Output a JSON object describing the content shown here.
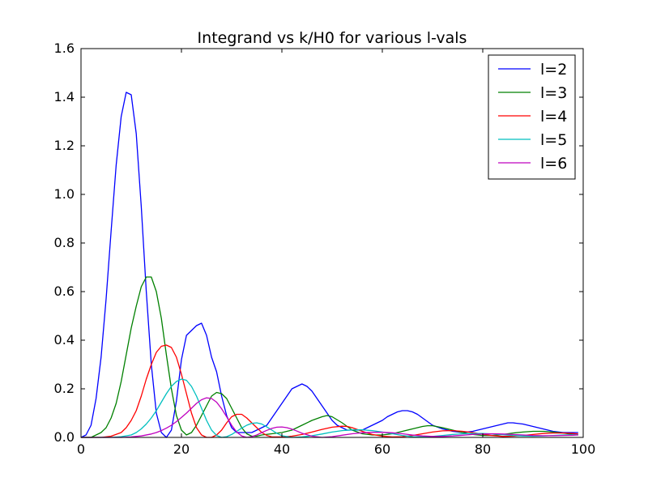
{
  "chart_data": {
    "type": "line",
    "title": "Integrand vs k/H0 for various l-vals",
    "xlabel": "",
    "ylabel": "",
    "xlim": [
      0,
      100
    ],
    "ylim": [
      0,
      1.6
    ],
    "xticks": [
      0,
      20,
      40,
      60,
      80,
      100
    ],
    "xtick_labels": [
      "0",
      "20",
      "40",
      "60",
      "80",
      "100"
    ],
    "yticks": [
      0,
      0.2,
      0.4,
      0.6,
      0.8,
      1.0,
      1.2,
      1.4,
      1.6
    ],
    "ytick_labels": [
      "0.0",
      "0.2",
      "0.4",
      "0.6",
      "0.8",
      "1.0",
      "1.2",
      "1.4",
      "1.6"
    ],
    "grid": false,
    "legend_position": "top-right",
    "series": [
      {
        "name": "l=2",
        "color": "#0000ff",
        "x": [
          0,
          1,
          2,
          3,
          4,
          5,
          6,
          7,
          8,
          9,
          10,
          11,
          12,
          13,
          14,
          15,
          16,
          17,
          18,
          19,
          20,
          21,
          22,
          23,
          24,
          25,
          26,
          27,
          28,
          29,
          30,
          31,
          32,
          33,
          34,
          35,
          36,
          37,
          38,
          39,
          40,
          41,
          42,
          43,
          44,
          45,
          46,
          47,
          48,
          49,
          50,
          51,
          52,
          53,
          54,
          55,
          56,
          57,
          58,
          59,
          60,
          61,
          62,
          63,
          64,
          65,
          66,
          67,
          68,
          69,
          70,
          72,
          74,
          76,
          78,
          80,
          82,
          84,
          85,
          86,
          88,
          90,
          92,
          94,
          96,
          98,
          99
        ],
        "y": [
          0.0,
          0.01,
          0.05,
          0.16,
          0.33,
          0.57,
          0.85,
          1.12,
          1.32,
          1.42,
          1.41,
          1.25,
          0.95,
          0.6,
          0.3,
          0.1,
          0.02,
          0.0,
          0.03,
          0.15,
          0.32,
          0.42,
          0.44,
          0.46,
          0.47,
          0.42,
          0.33,
          0.27,
          0.17,
          0.09,
          0.04,
          0.02,
          0.02,
          0.02,
          0.02,
          0.03,
          0.04,
          0.05,
          0.08,
          0.11,
          0.14,
          0.17,
          0.2,
          0.21,
          0.22,
          0.21,
          0.19,
          0.16,
          0.13,
          0.1,
          0.07,
          0.05,
          0.04,
          0.03,
          0.03,
          0.03,
          0.03,
          0.04,
          0.05,
          0.06,
          0.07,
          0.085,
          0.095,
          0.105,
          0.11,
          0.11,
          0.105,
          0.095,
          0.08,
          0.065,
          0.05,
          0.035,
          0.025,
          0.02,
          0.025,
          0.035,
          0.045,
          0.055,
          0.06,
          0.06,
          0.055,
          0.045,
          0.035,
          0.025,
          0.02,
          0.02,
          0.02
        ]
      },
      {
        "name": "l=3",
        "color": "#008000",
        "x": [
          0,
          2,
          3,
          4,
          5,
          6,
          7,
          8,
          9,
          10,
          11,
          12,
          13,
          14,
          15,
          16,
          17,
          18,
          19,
          20,
          21,
          22,
          23,
          24,
          25,
          26,
          27,
          28,
          29,
          30,
          31,
          32,
          33,
          34,
          35,
          36,
          38,
          40,
          42,
          44,
          46,
          48,
          49,
          50,
          52,
          54,
          56,
          58,
          60,
          62,
          64,
          66,
          68,
          69,
          70,
          72,
          74,
          76,
          78,
          80,
          82,
          84,
          86,
          88,
          90,
          92,
          94,
          96,
          98,
          99
        ],
        "y": [
          0.0,
          0.0,
          0.01,
          0.02,
          0.04,
          0.08,
          0.14,
          0.23,
          0.34,
          0.45,
          0.54,
          0.62,
          0.66,
          0.66,
          0.6,
          0.49,
          0.34,
          0.2,
          0.09,
          0.03,
          0.01,
          0.02,
          0.05,
          0.09,
          0.13,
          0.17,
          0.185,
          0.18,
          0.16,
          0.12,
          0.08,
          0.04,
          0.015,
          0.005,
          0.005,
          0.01,
          0.015,
          0.02,
          0.03,
          0.05,
          0.07,
          0.085,
          0.09,
          0.085,
          0.06,
          0.03,
          0.015,
          0.01,
          0.01,
          0.015,
          0.025,
          0.035,
          0.045,
          0.048,
          0.048,
          0.04,
          0.03,
          0.02,
          0.012,
          0.008,
          0.008,
          0.012,
          0.018,
          0.022,
          0.025,
          0.025,
          0.022,
          0.018,
          0.012,
          0.01
        ]
      },
      {
        "name": "l=4",
        "color": "#ff0000",
        "x": [
          0,
          4,
          6,
          8,
          9,
          10,
          11,
          12,
          13,
          14,
          15,
          16,
          17,
          18,
          19,
          20,
          21,
          22,
          23,
          24,
          25,
          26,
          27,
          28,
          29,
          30,
          31,
          32,
          33,
          34,
          35,
          36,
          37,
          38,
          40,
          42,
          44,
          46,
          48,
          50,
          52,
          53,
          54,
          56,
          58,
          60,
          62,
          64,
          66,
          68,
          70,
          72,
          74,
          76,
          78,
          80,
          82,
          84,
          86,
          88,
          90,
          92,
          94,
          96,
          98,
          99
        ],
        "y": [
          0.0,
          0.0,
          0.005,
          0.02,
          0.04,
          0.07,
          0.11,
          0.17,
          0.24,
          0.3,
          0.35,
          0.375,
          0.38,
          0.37,
          0.33,
          0.26,
          0.18,
          0.1,
          0.04,
          0.01,
          0.0,
          0.0,
          0.01,
          0.03,
          0.06,
          0.085,
          0.095,
          0.095,
          0.08,
          0.06,
          0.04,
          0.02,
          0.008,
          0.002,
          0.002,
          0.005,
          0.012,
          0.022,
          0.033,
          0.042,
          0.046,
          0.045,
          0.04,
          0.025,
          0.012,
          0.005,
          0.002,
          0.003,
          0.008,
          0.015,
          0.022,
          0.027,
          0.028,
          0.025,
          0.02,
          0.013,
          0.007,
          0.004,
          0.005,
          0.008,
          0.012,
          0.016,
          0.018,
          0.018,
          0.016,
          0.014
        ]
      },
      {
        "name": "l=5",
        "color": "#00bfbf",
        "x": [
          0,
          6,
          8,
          10,
          11,
          12,
          13,
          14,
          15,
          16,
          17,
          18,
          19,
          20,
          21,
          22,
          23,
          24,
          25,
          26,
          27,
          28,
          29,
          30,
          31,
          32,
          33,
          34,
          35,
          36,
          37,
          38,
          39,
          40,
          42,
          44,
          46,
          48,
          50,
          52,
          54,
          56,
          58,
          60,
          62,
          64,
          66,
          68,
          70,
          72,
          74,
          76,
          78,
          80,
          82,
          84,
          86,
          88,
          90,
          92,
          94,
          96,
          98,
          99
        ],
        "y": [
          0.0,
          0.0,
          0.003,
          0.01,
          0.02,
          0.035,
          0.055,
          0.08,
          0.11,
          0.145,
          0.18,
          0.21,
          0.23,
          0.24,
          0.235,
          0.21,
          0.17,
          0.12,
          0.07,
          0.03,
          0.008,
          0.0,
          0.003,
          0.012,
          0.025,
          0.038,
          0.05,
          0.058,
          0.06,
          0.055,
          0.043,
          0.03,
          0.017,
          0.007,
          0.0,
          0.002,
          0.007,
          0.014,
          0.022,
          0.028,
          0.031,
          0.031,
          0.028,
          0.022,
          0.015,
          0.008,
          0.003,
          0.002,
          0.004,
          0.008,
          0.012,
          0.015,
          0.016,
          0.016,
          0.014,
          0.011,
          0.008,
          0.006,
          0.005,
          0.006,
          0.008,
          0.01,
          0.011,
          0.011
        ]
      },
      {
        "name": "l=6",
        "color": "#bf00bf",
        "x": [
          0,
          8,
          10,
          12,
          14,
          15,
          16,
          17,
          18,
          19,
          20,
          21,
          22,
          23,
          24,
          25,
          26,
          27,
          28,
          29,
          30,
          31,
          32,
          33,
          34,
          35,
          36,
          37,
          38,
          39,
          40,
          41,
          42,
          43,
          44,
          46,
          48,
          50,
          52,
          54,
          56,
          58,
          60,
          62,
          64,
          66,
          68,
          70,
          72,
          74,
          76,
          78,
          80,
          82,
          84,
          86,
          88,
          90,
          92,
          94,
          96,
          98,
          99
        ],
        "y": [
          0.0,
          0.0,
          0.002,
          0.006,
          0.014,
          0.02,
          0.028,
          0.038,
          0.05,
          0.065,
          0.082,
          0.1,
          0.12,
          0.14,
          0.155,
          0.163,
          0.16,
          0.145,
          0.118,
          0.085,
          0.05,
          0.022,
          0.006,
          0.0,
          0.003,
          0.01,
          0.02,
          0.029,
          0.037,
          0.042,
          0.043,
          0.04,
          0.034,
          0.026,
          0.017,
          0.005,
          0.0,
          0.003,
          0.009,
          0.015,
          0.019,
          0.021,
          0.021,
          0.019,
          0.015,
          0.01,
          0.006,
          0.004,
          0.004,
          0.006,
          0.009,
          0.012,
          0.014,
          0.015,
          0.014,
          0.012,
          0.01,
          0.008,
          0.007,
          0.007,
          0.008,
          0.009,
          0.01
        ]
      }
    ]
  }
}
